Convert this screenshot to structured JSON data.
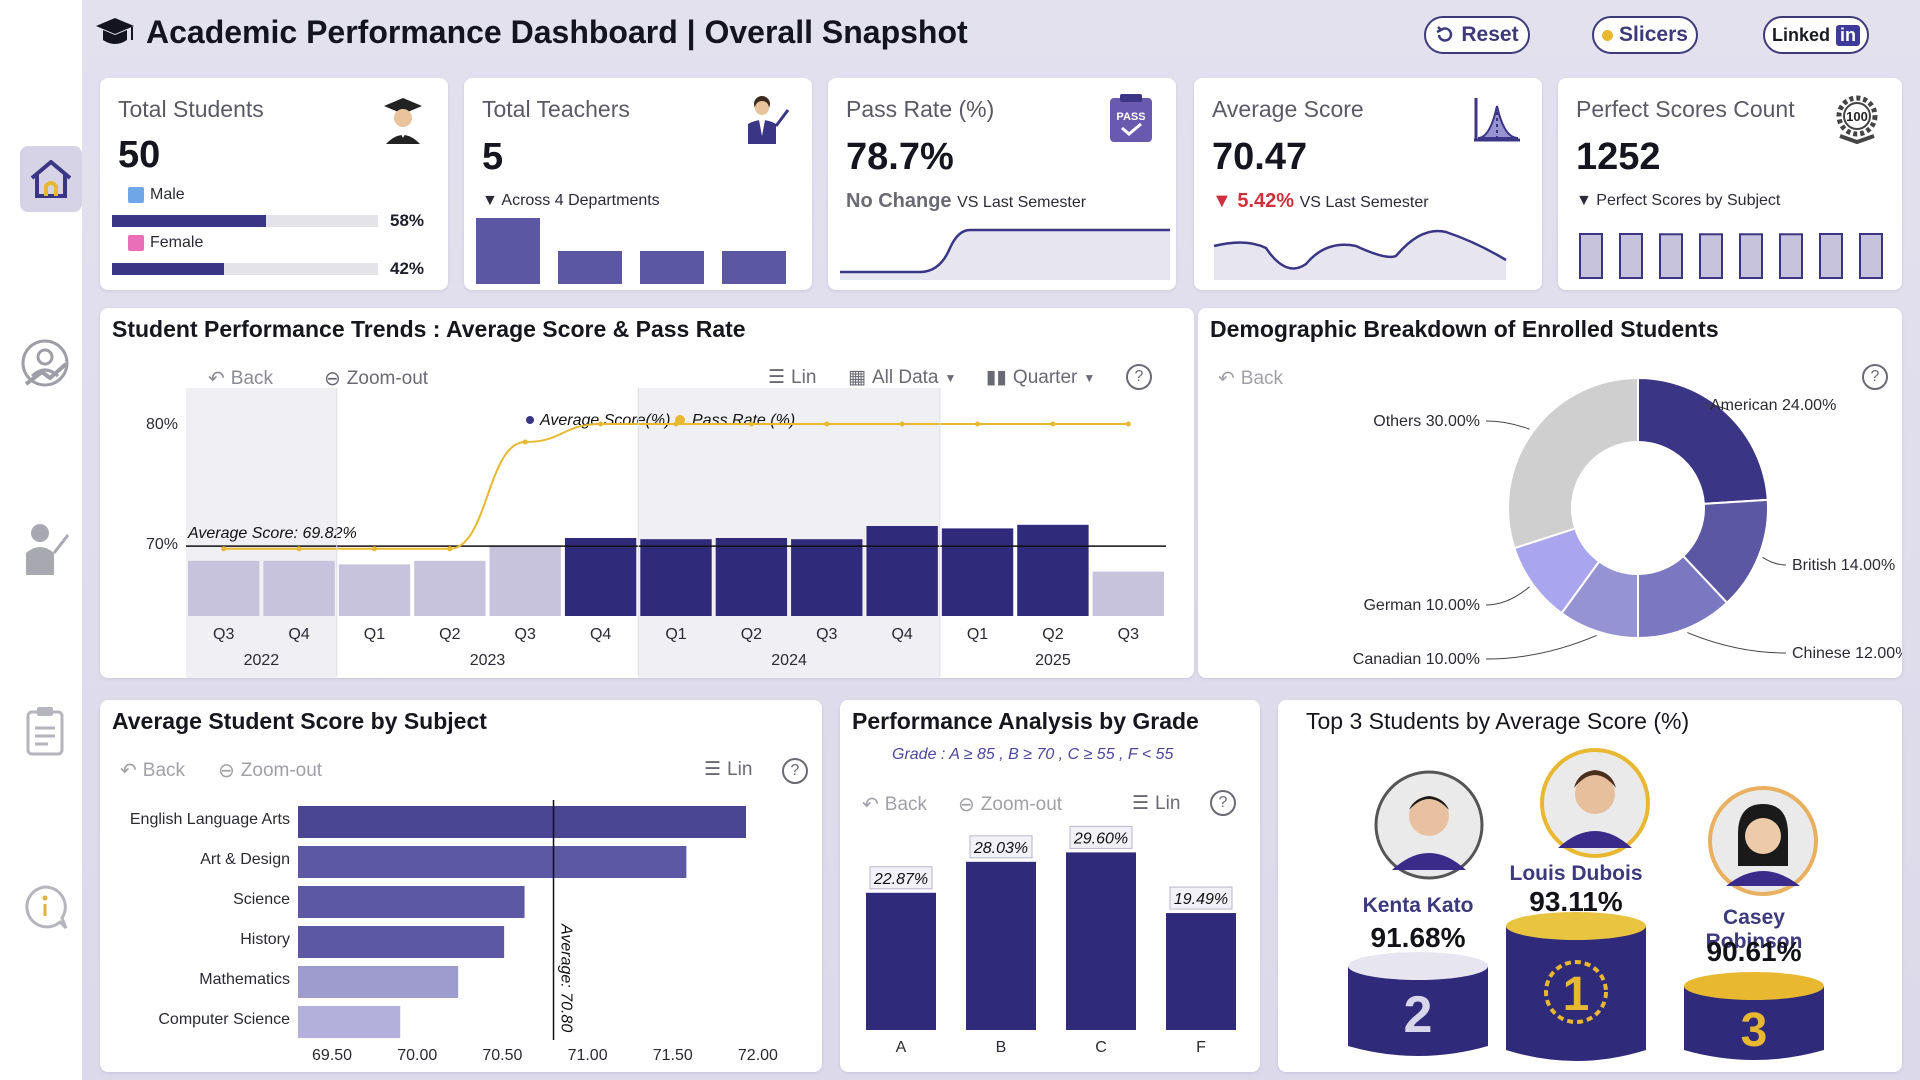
{
  "header": {
    "title": "Academic Performance Dashboard | Overall Snapshot",
    "reset_label": "Reset",
    "slicers_label": "Slicers",
    "linkedin_label": "Linked",
    "linkedin_in": "in"
  },
  "sidebar": {
    "items": [
      {
        "icon": "home-icon",
        "active": true
      },
      {
        "icon": "student-growth-icon",
        "active": false
      },
      {
        "icon": "teacher-icon",
        "active": false
      },
      {
        "icon": "clipboard-icon",
        "active": false
      },
      {
        "icon": "info-icon",
        "active": false
      }
    ]
  },
  "kpis": {
    "students": {
      "label": "Total Students",
      "value": "50",
      "male_label": "Male",
      "male_pct": "58%",
      "male_fraction": 0.58,
      "female_label": "Female",
      "female_pct": "42%",
      "female_fraction": 0.42
    },
    "teachers": {
      "label": "Total Teachers",
      "value": "5",
      "sub": "▼ Across 4 Departments",
      "dept_values": [
        2,
        1,
        1,
        1
      ]
    },
    "pass_rate": {
      "label": "Pass Rate (%)",
      "value": "78.7%",
      "change": "No Change",
      "vs": "VS Last Semester"
    },
    "avg_score": {
      "label": "Average Score",
      "value": "70.47",
      "change": "▼ 5.42%",
      "vs": "VS Last Semester"
    },
    "perfect": {
      "label": "Perfect Scores Count",
      "value": "1252",
      "sub": "▼ Perfect Scores by Subject",
      "bar_values": [
        157,
        157,
        156,
        156,
        156,
        156,
        157,
        157
      ]
    }
  },
  "trends": {
    "title": "Student Performance Trends : Average Score & Pass Rate",
    "toolbar": {
      "back": "Back",
      "zoom_out": "Zoom-out",
      "lin": "Lin",
      "all_data": "All Data",
      "quarter": "Quarter",
      "help": "?"
    },
    "legend": {
      "avg": "Average Score(%)",
      "pass": "Pass Rate (%)"
    },
    "avg_annotation": "Average Score: 69.82%",
    "y_ticks": [
      "80%",
      "70%"
    ],
    "years": [
      "2022",
      "2023",
      "2024",
      "2025"
    ]
  },
  "demographic": {
    "title": "Demographic Breakdown of Enrolled Students",
    "back": "Back",
    "help": "?"
  },
  "subject": {
    "title": "Average Student Score by Subject",
    "toolbar": {
      "back": "Back",
      "zoom_out": "Zoom-out",
      "lin": "Lin",
      "help": "?"
    },
    "avg_label": "Average: 70.80"
  },
  "grade": {
    "title": "Performance Analysis by Grade",
    "legend": "Grade : A ≥ 85 , B ≥ 70 , C ≥ 55 , F < 55",
    "toolbar": {
      "back": "Back",
      "zoom_out": "Zoom-out",
      "lin": "Lin",
      "help": "?"
    }
  },
  "top3": {
    "title": "Top 3 Students by Average Score (%)",
    "students": [
      {
        "name": "Kenta Kato",
        "score": "91.68%",
        "rank": "2"
      },
      {
        "name": "Louis Dubois",
        "score": "93.11%",
        "rank": "1"
      },
      {
        "name": "Casey Robinson",
        "score": "90.61%",
        "rank": "3"
      }
    ]
  },
  "chart_data": [
    {
      "type": "bar",
      "title": "Student Performance Trends : Average Score & Pass Rate",
      "categories": [
        "2022 Q3",
        "2022 Q4",
        "2023 Q1",
        "2023 Q2",
        "2023 Q3",
        "2023 Q4",
        "2024 Q1",
        "2024 Q2",
        "2024 Q3",
        "2024 Q4",
        "2025 Q1",
        "2025 Q2",
        "2025 Q3"
      ],
      "quarter_labels": [
        "Q3",
        "Q4",
        "Q1",
        "Q2",
        "Q3",
        "Q4",
        "Q1",
        "Q2",
        "Q3",
        "Q4",
        "Q1",
        "Q2",
        "Q3"
      ],
      "series": [
        {
          "name": "Average Score(%)",
          "type": "bar",
          "values": [
            68.6,
            68.6,
            68.3,
            68.6,
            69.9,
            70.5,
            70.4,
            70.5,
            70.4,
            71.5,
            71.3,
            71.6,
            67.7
          ],
          "highlight": [
            false,
            false,
            false,
            false,
            false,
            true,
            true,
            true,
            true,
            true,
            true,
            true,
            false
          ]
        },
        {
          "name": "Pass Rate (%)",
          "type": "line",
          "values": [
            69.6,
            69.6,
            69.6,
            69.6,
            78.5,
            80.0,
            80.0,
            80.0,
            80.0,
            80.0,
            80.0,
            80.0,
            80.0
          ]
        }
      ],
      "reference_line": 69.82,
      "ylim": [
        64,
        83
      ],
      "colors": {
        "bar_dark": "#2f2a7a",
        "bar_light": "#c7c3dd",
        "line": "#e8b830"
      }
    },
    {
      "type": "pie",
      "title": "Demographic Breakdown of Enrolled Students",
      "slices": [
        {
          "label": "American 24.00%",
          "value": 24,
          "color": "#3a3585"
        },
        {
          "label": "British 14.00%",
          "value": 14,
          "color": "#5b57a3"
        },
        {
          "label": "Chinese 12.00%",
          "value": 12,
          "color": "#7b78c2"
        },
        {
          "label": "Canadian 10.00%",
          "value": 10,
          "color": "#9693d2"
        },
        {
          "label": "German 10.00%",
          "value": 10,
          "color": "#a9a6ef"
        },
        {
          "label": "Others 30.00%",
          "value": 30,
          "color": "#cfcfcf"
        }
      ]
    },
    {
      "type": "bar",
      "orientation": "horizontal",
      "title": "Average Student Score by Subject",
      "categories": [
        "English Language Arts",
        "Art & Design",
        "Science",
        "History",
        "Mathematics",
        "Computer Science"
      ],
      "values": [
        71.93,
        71.58,
        70.63,
        70.51,
        70.24,
        69.9
      ],
      "x_ticks": [
        "69.50",
        "70.00",
        "70.50",
        "71.00",
        "71.50",
        "72.00"
      ],
      "xlim": [
        69.3,
        72.2
      ],
      "average": 70.8,
      "colors": [
        "#4a4693",
        "#5c58a3",
        "#5c58a3",
        "#5c58a3",
        "#9e9bcf",
        "#b3b0dc"
      ]
    },
    {
      "type": "bar",
      "title": "Performance Analysis by Grade",
      "categories": [
        "A",
        "B",
        "C",
        "F"
      ],
      "values": [
        22.87,
        28.03,
        29.6,
        19.49
      ],
      "labels": [
        "22.87%",
        "28.03%",
        "29.60%",
        "19.49%"
      ],
      "ylim": [
        0,
        35
      ],
      "color": "#2f2a7a"
    }
  ]
}
